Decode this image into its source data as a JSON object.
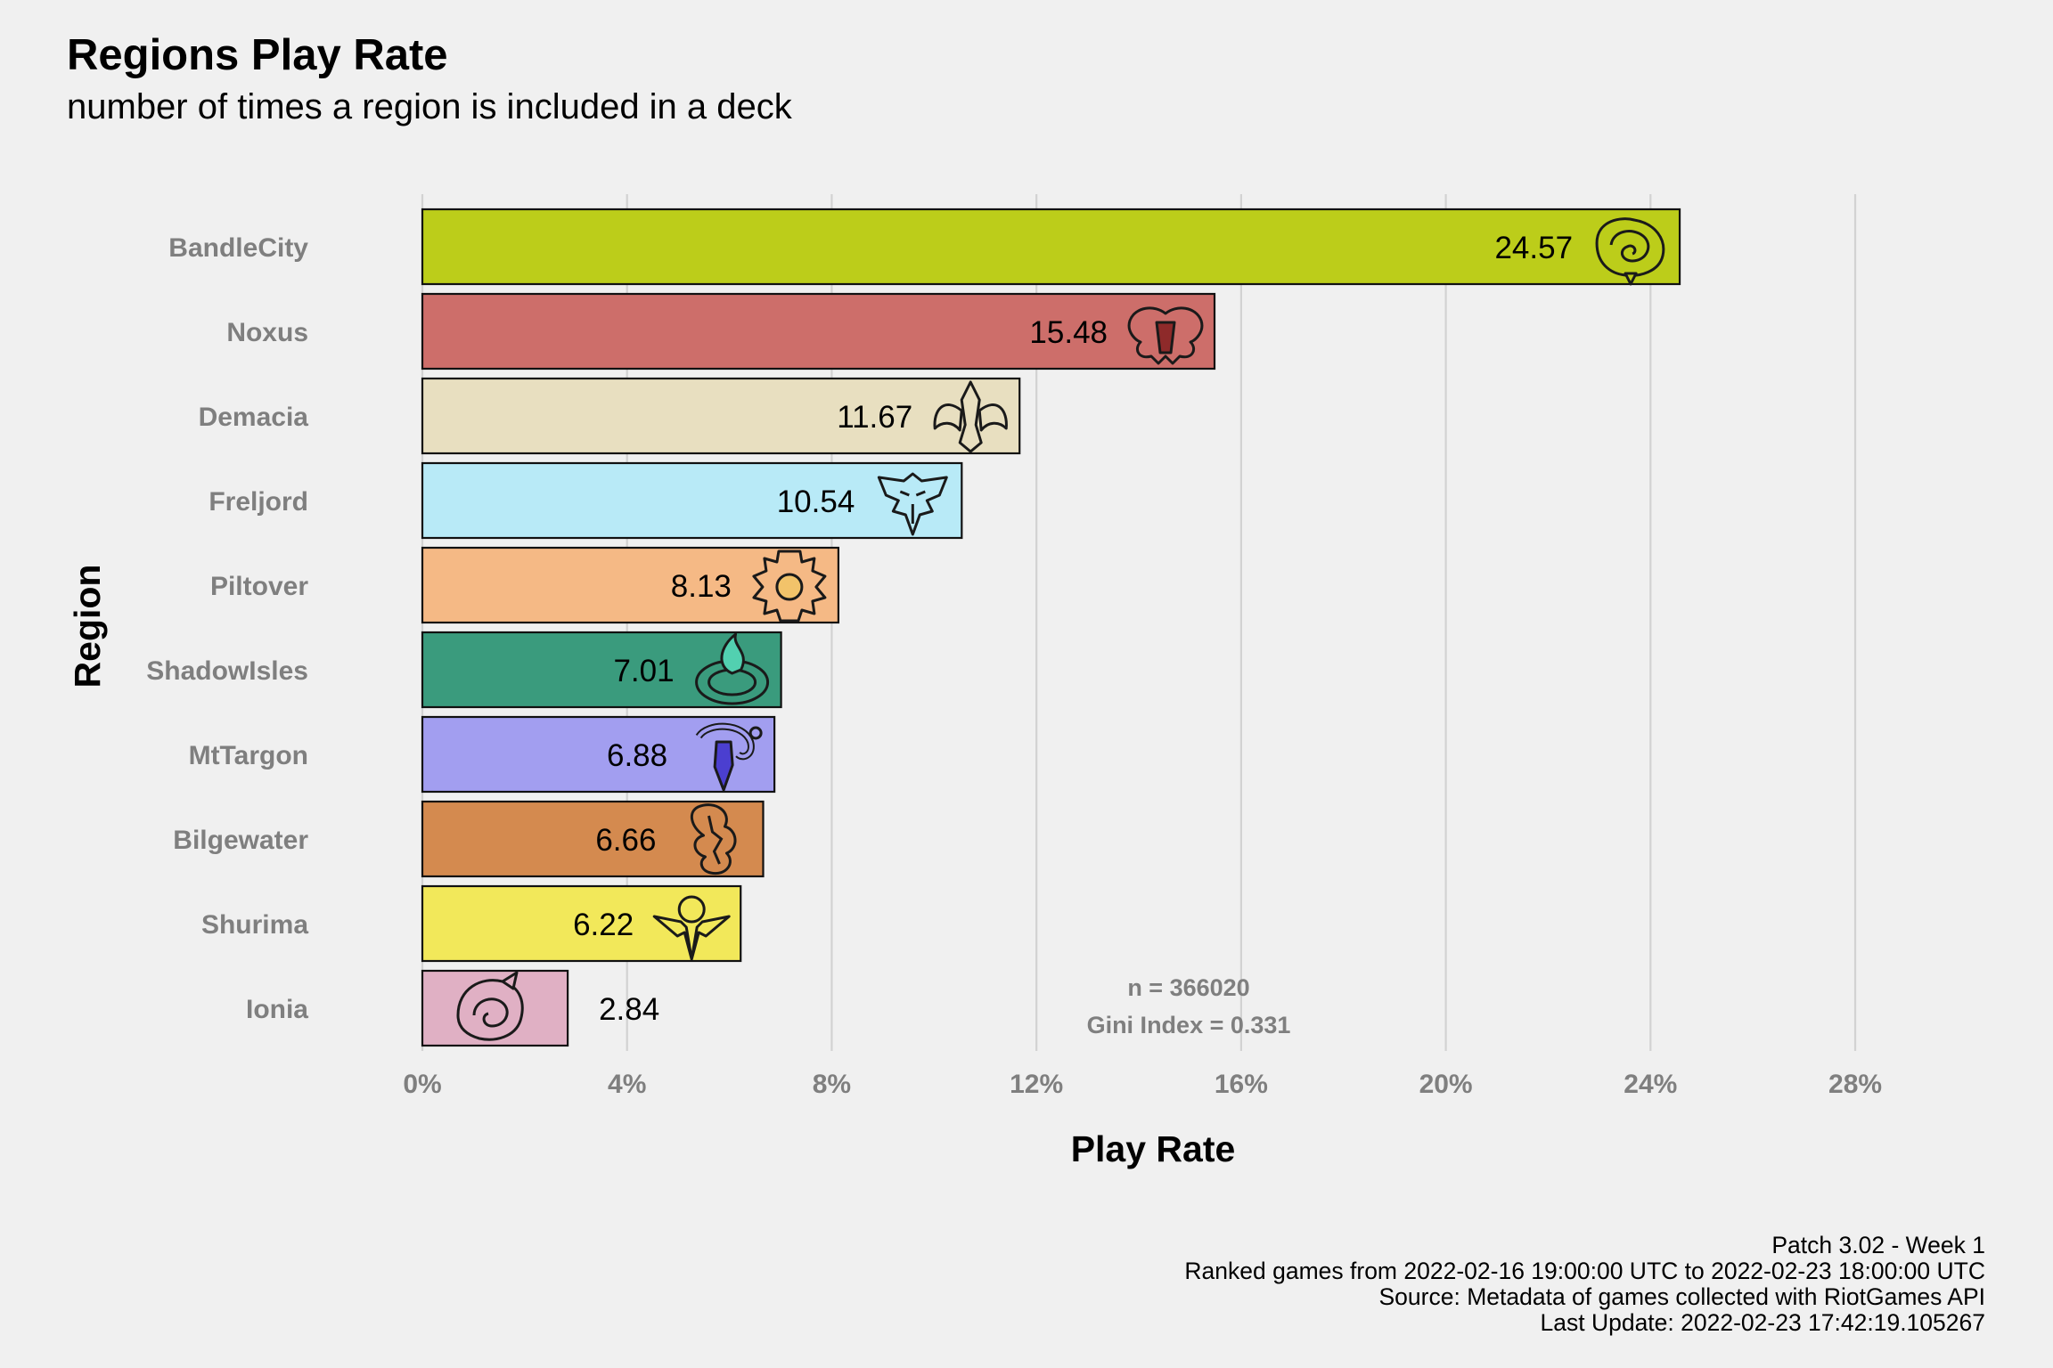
{
  "header": {
    "title": "Regions Play Rate",
    "subtitle": "number of times a region is included in a deck"
  },
  "chart_data": {
    "type": "bar",
    "orientation": "horizontal",
    "xlabel": "Play Rate",
    "ylabel": "Region",
    "xlim": [
      0,
      28
    ],
    "xticks": [
      0,
      4,
      8,
      12,
      16,
      20,
      24,
      28
    ],
    "xtick_labels": [
      "0%",
      "4%",
      "8%",
      "12%",
      "16%",
      "20%",
      "24%",
      "28%"
    ],
    "grid": "vertical major",
    "legend": "none",
    "categories": [
      "BandleCity",
      "Noxus",
      "Demacia",
      "Freljord",
      "Piltover",
      "ShadowIsles",
      "MtTargon",
      "Bilgewater",
      "Shurima",
      "Ionia"
    ],
    "values": [
      24.57,
      15.48,
      11.67,
      10.54,
      8.13,
      7.01,
      6.88,
      6.66,
      6.22,
      2.84
    ],
    "value_labels": [
      "24.57",
      "15.48",
      "11.67",
      "10.54",
      "8.13",
      "7.01",
      "6.88",
      "6.66",
      "6.22",
      "2.84"
    ],
    "colors": [
      "#bccd1a",
      "#cd6e6a",
      "#e8dfc0",
      "#b8eaf7",
      "#f5b985",
      "#3a9b7d",
      "#a29ef0",
      "#d48a4f",
      "#f2e85a",
      "#e0b0c4"
    ],
    "icons": [
      "bandle-city-icon",
      "noxus-icon",
      "demacia-icon",
      "freljord-icon",
      "piltover-icon",
      "shadow-isles-icon",
      "mt-targon-icon",
      "bilgewater-icon",
      "shurima-icon",
      "ionia-icon"
    ],
    "annotations": [
      "n = 366020",
      "Gini Index = 0.331"
    ]
  },
  "caption": [
    "Patch 3.02 - Week 1",
    "Ranked games from 2022-02-16 19:00:00 UTC to 2022-02-23 18:00:00 UTC",
    "Source: Metadata of games collected with RiotGames API",
    "Last Update: 2022-02-23 17:42:19.105267"
  ]
}
